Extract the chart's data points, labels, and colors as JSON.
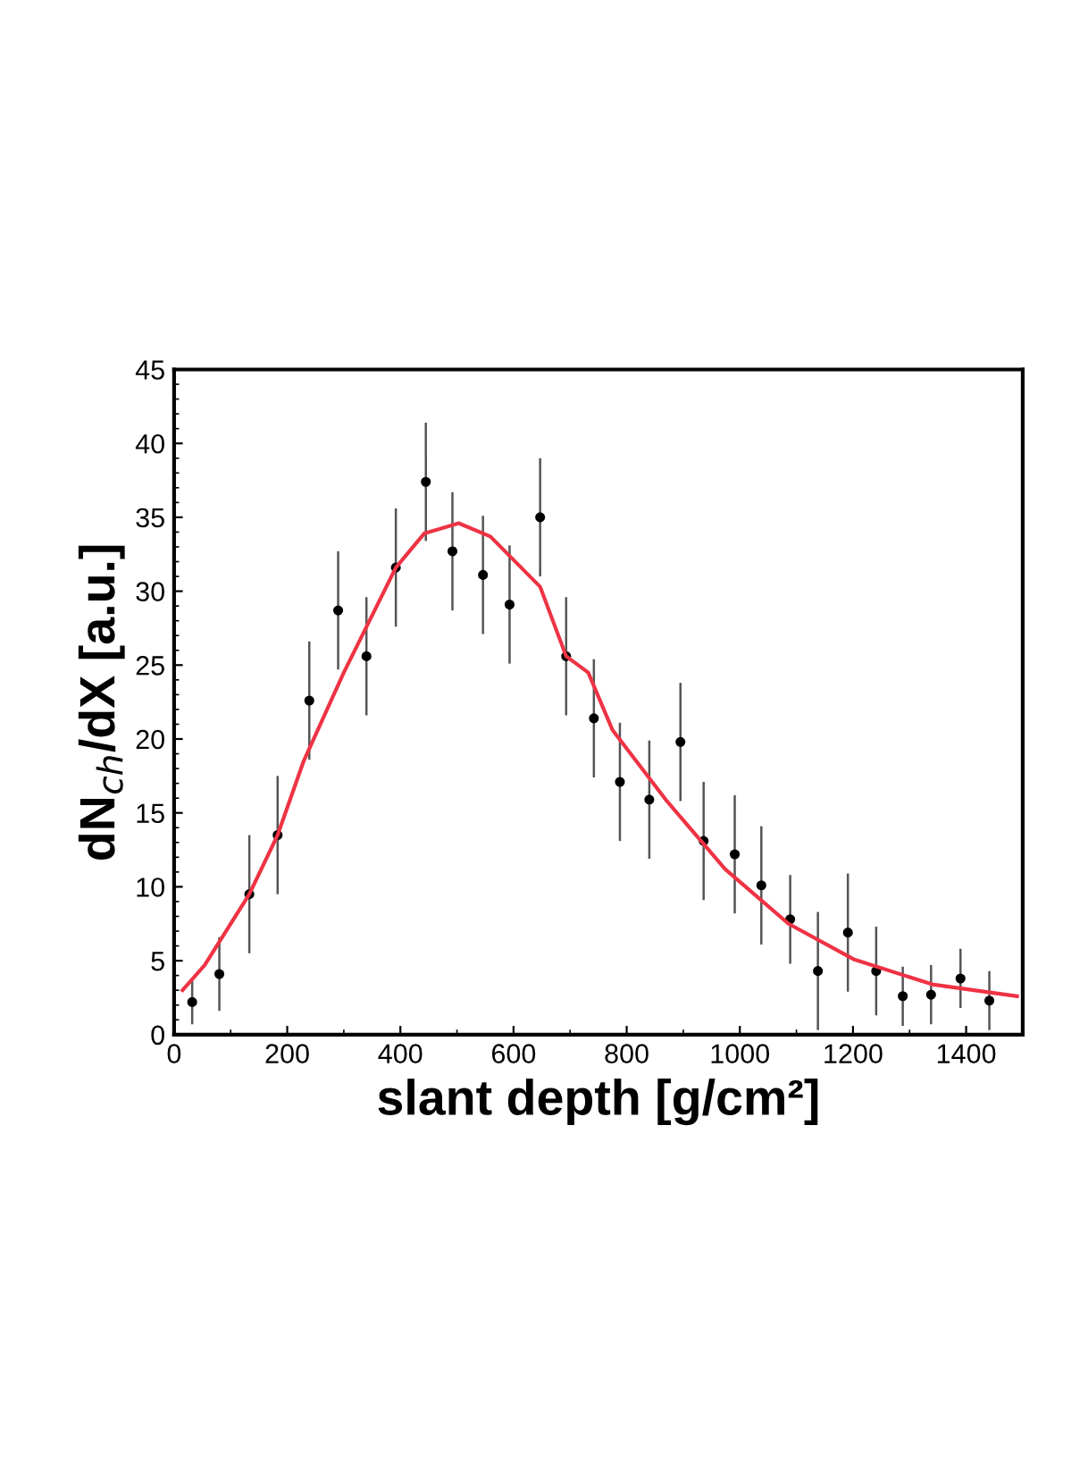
{
  "chart_data": {
    "type": "scatter",
    "xlabel": "slant depth [g/cm²]",
    "ylabel": "dN$_{ch}$/dX [a.u.]",
    "xlim": [
      0,
      1500
    ],
    "xticks": [
      0,
      200,
      400,
      600,
      800,
      1000,
      1200,
      1400
    ],
    "ylim": [
      0,
      45
    ],
    "yticks": [
      0,
      5,
      10,
      15,
      20,
      25,
      30,
      35,
      40,
      45
    ],
    "grid": false,
    "marker": "circle",
    "series": [
      {
        "color": "#000000",
        "x": [
          32,
          80,
          133,
          183,
          239,
          290,
          340,
          392,
          445,
          492,
          546,
          593,
          647,
          693,
          742,
          788,
          840,
          895,
          936,
          991,
          1038,
          1089,
          1138,
          1191,
          1241,
          1288,
          1338,
          1390,
          1441
        ],
        "values": [
          2.2,
          4.1,
          9.5,
          13.5,
          22.6,
          28.7,
          25.6,
          31.6,
          37.4,
          32.7,
          31.1,
          29.1,
          35.0,
          25.6,
          21.4,
          17.1,
          15.9,
          19.8,
          13.1,
          12.2,
          10.1,
          7.8,
          4.3,
          6.9,
          4.3,
          2.6,
          2.7,
          3.8,
          2.3
        ],
        "errors": [
          1.5,
          2.5,
          4,
          4,
          4,
          4,
          4,
          4,
          4,
          4,
          4,
          4,
          4,
          4,
          4,
          4,
          4,
          4,
          4,
          4,
          4,
          3,
          4,
          4,
          3,
          2,
          2,
          2,
          2
        ]
      },
      {
        "type": "line",
        "color": "#ee3344",
        "line_style": "solid",
        "marker": "none",
        "x": [
          15,
          54,
          133,
          183,
          229,
          300,
          392,
          442,
          503,
          559,
          647,
          693,
          732,
          775,
          871,
          974,
          1086,
          1201,
          1340,
          1490
        ],
        "values": [
          3.0,
          4.7,
          9.5,
          13.5,
          18.5,
          24.5,
          31.6,
          33.9,
          34.6,
          33.7,
          30.3,
          25.6,
          24.5,
          20.6,
          15.8,
          11.2,
          7.5,
          5.1,
          3.4,
          2.6
        ]
      }
    ]
  }
}
